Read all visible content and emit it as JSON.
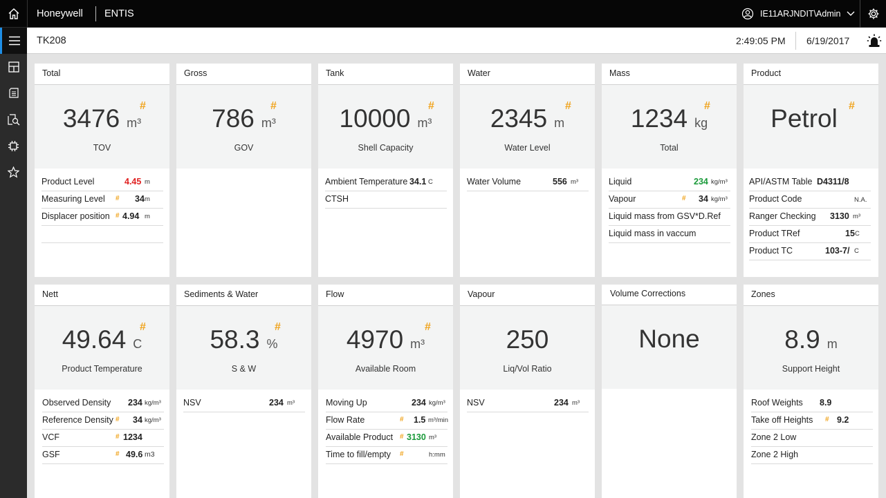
{
  "header": {
    "brand": "Honeywell",
    "app": "ENTIS",
    "user": "IE11ARJNDIT\\Admin"
  },
  "subheader": {
    "tank": "TK208",
    "time": "2:49:05 PM",
    "date": "6/19/2017"
  },
  "sidebar": {
    "items": [
      "menu-icon",
      "dashboard-icon",
      "document-icon",
      "search-report-icon",
      "network-icon",
      "star-icon"
    ]
  },
  "cards": {
    "total": {
      "title": "Total",
      "value": "3476",
      "unit": "m³",
      "hash": "#",
      "label": "TOV",
      "rows": [
        {
          "label": "Product Level",
          "value": "4.45",
          "unit": "m",
          "hash": ""
        },
        {
          "label": "Measuring Level",
          "value": "34",
          "unit": "m",
          "hash": "#"
        },
        {
          "label": "Displacer position",
          "value": "4.94",
          "unit": "m",
          "hash": "#"
        }
      ]
    },
    "gross": {
      "title": "Gross",
      "value": "786",
      "unit": "m³",
      "hash": "#",
      "label": "GOV"
    },
    "tank": {
      "title": "Tank",
      "value": "10000",
      "unit": "m³",
      "hash": "#",
      "label": "Shell Capacity",
      "rows": [
        {
          "label": "Ambient Temperature",
          "value": "34.1",
          "unit": "C"
        },
        {
          "label": "CTSH"
        }
      ]
    },
    "water": {
      "title": "Water",
      "value": "2345",
      "unit": "m",
      "hash": "#",
      "label": "Water Level",
      "rows": [
        {
          "label": "Water Volume",
          "value": "556",
          "unit": "m³"
        }
      ]
    },
    "mass": {
      "title": "Mass",
      "value": "1234",
      "unit": "kg",
      "hash": "#",
      "label": "Total",
      "rows": [
        {
          "label": "Liquid",
          "value": "234",
          "unit": "kg/m³"
        },
        {
          "label": "Vapour",
          "value": "34",
          "unit": "kg/m³",
          "hash": "#"
        },
        {
          "label": "Liquid mass from GSV*D.Ref"
        },
        {
          "label": "Liquid mass in vaccum"
        }
      ]
    },
    "product": {
      "title": "Product",
      "value": "Petrol",
      "hash": "#",
      "rows": [
        {
          "label": "API/ASTM Table",
          "value": "D4311/8"
        },
        {
          "label": "Product Code",
          "value": "N.A."
        },
        {
          "label": "Ranger Checking",
          "value": "3130",
          "unit": "m³"
        },
        {
          "label": "Product TRef",
          "value": "15",
          "unit": "C"
        },
        {
          "label": "Product TC",
          "value": "103-7/",
          "unit": "C"
        }
      ]
    },
    "nett": {
      "title": "Nett",
      "value": "49.64",
      "unit": "C",
      "hash": "#",
      "label": "Product Temperature",
      "rows": [
        {
          "label": "Observed Density",
          "value": "234",
          "unit": "kg/m³"
        },
        {
          "label": "Reference Density",
          "value": "34",
          "unit": "kg/m³",
          "hash": "#"
        },
        {
          "label": "VCF",
          "value": "1234",
          "hash": "#"
        },
        {
          "label": "GSF",
          "value": "49.6",
          "unit": "m3",
          "hash": "#"
        }
      ]
    },
    "sediments": {
      "title": "Sediments & Water",
      "value": "58.3",
      "unit": "%",
      "hash": "#",
      "label": "S & W",
      "rows": [
        {
          "label": "NSV",
          "value": "234",
          "unit": "m³"
        }
      ]
    },
    "flow": {
      "title": "Flow",
      "value": "4970",
      "unit": "m³",
      "hash": "#",
      "label": "Available Room",
      "rows": [
        {
          "label": "Moving Up",
          "value": "234",
          "unit": "kg/m³"
        },
        {
          "label": "Flow Rate",
          "value": "1.5",
          "unit": "m³/min",
          "hash": "#"
        },
        {
          "label": "Available Product",
          "value": "3130",
          "unit": "m³",
          "hash": "#"
        },
        {
          "label": "Time to fill/empty",
          "unit": "h:mm",
          "hash": "#"
        }
      ]
    },
    "vapour": {
      "title": "Vapour",
      "value": "250",
      "label": "Liq/Vol Ratio",
      "rows": [
        {
          "label": "NSV",
          "value": "234",
          "unit": "m³"
        }
      ]
    },
    "volcorr": {
      "title": "Volume Corrections",
      "value": "None"
    },
    "zones": {
      "title": "Zones",
      "value": "8.9",
      "unit": "m",
      "label": "Support Height",
      "rows": [
        {
          "label": "Roof Weights",
          "value": "8.9"
        },
        {
          "label": "Take off Heights",
          "value": "9.2",
          "hash": "#"
        },
        {
          "label": "Zone 2 Low"
        },
        {
          "label": "Zone 2 High"
        }
      ]
    }
  },
  "colors": {
    "accent": "#1e8ee6",
    "hash": "#f0a41e",
    "alert": "#e02020",
    "ok": "#1a9a3a"
  }
}
